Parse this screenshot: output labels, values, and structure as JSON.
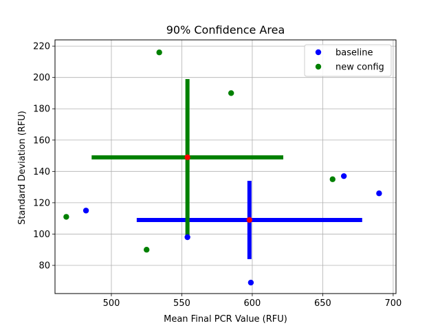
{
  "chart_data": {
    "type": "scatter",
    "title": "90% Confidence Area",
    "xlabel": "Mean Final PCR Value (RFU)",
    "ylabel": "Standard Deviation (RFU)",
    "xlim": [
      460,
      702
    ],
    "ylim": [
      62,
      224
    ],
    "xticks": [
      500,
      550,
      600,
      650,
      700
    ],
    "yticks": [
      80,
      100,
      120,
      140,
      160,
      180,
      200,
      220
    ],
    "grid": true,
    "legend_position": "top-right",
    "series": [
      {
        "name": "baseline",
        "color": "#0000ff",
        "points": [
          [
            482,
            115
          ],
          [
            554,
            98
          ],
          [
            599,
            69
          ],
          [
            665,
            137
          ],
          [
            690,
            126
          ]
        ],
        "center": [
          598,
          109
        ],
        "x_interval": [
          518,
          678
        ],
        "y_interval": [
          84,
          134
        ]
      },
      {
        "name": "new config",
        "color": "#008000",
        "points": [
          [
            468,
            111
          ],
          [
            525,
            90
          ],
          [
            534,
            216
          ],
          [
            585,
            190
          ],
          [
            657,
            135
          ]
        ],
        "center": [
          554,
          149
        ],
        "x_interval": [
          486,
          622
        ],
        "y_interval": [
          98,
          199
        ]
      }
    ],
    "center_color": "#ff0000"
  }
}
